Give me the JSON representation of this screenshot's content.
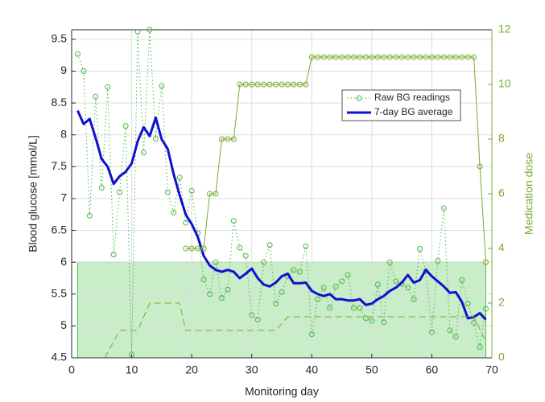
{
  "chart_data": {
    "type": "line",
    "xlabel": "Monitoring day",
    "ylabel": "Blood glucose [mmol/L]",
    "y2label": "Medication dose",
    "xlim": [
      0,
      70
    ],
    "xticks": [
      0,
      10,
      20,
      30,
      40,
      50,
      60,
      70
    ],
    "ylim": [
      4.5,
      9.65
    ],
    "yticks": [
      4.5,
      5,
      5.5,
      6,
      6.5,
      7,
      7.5,
      8,
      8.5,
      9,
      9.5
    ],
    "y2lim": [
      0,
      12
    ],
    "y2ticks": [
      0,
      2,
      4,
      6,
      8,
      10,
      12
    ],
    "y2color": "#77ac30",
    "grid": true,
    "band": {
      "x": [
        1,
        69
      ],
      "y": [
        4.5,
        6
      ],
      "color": "#c9ecc9",
      "edge": "#4cc04c"
    },
    "series": [
      {
        "name": "Raw BG readings",
        "color": "#4cb84c",
        "line_style": "dotted",
        "marker": "o",
        "width": 1,
        "x": [
          1,
          2,
          3,
          4,
          5,
          6,
          7,
          8,
          9,
          10,
          11,
          12,
          13,
          14,
          15,
          16,
          17,
          18,
          19,
          20,
          21,
          22,
          23,
          24,
          25,
          26,
          27,
          28,
          29,
          30,
          31,
          32,
          33,
          34,
          35,
          36,
          37,
          38,
          39,
          40,
          41,
          42,
          43,
          44,
          45,
          46,
          47,
          48,
          49,
          50,
          51,
          52,
          53,
          54,
          55,
          56,
          57,
          58,
          59,
          60,
          61,
          62,
          63,
          64,
          65,
          66,
          67,
          68,
          69
        ],
        "values": [
          9.27,
          9.0,
          6.73,
          8.6,
          7.17,
          8.75,
          6.12,
          7.1,
          8.14,
          4.55,
          9.62,
          7.72,
          9.65,
          7.94,
          8.77,
          7.1,
          6.78,
          7.33,
          6.62,
          7.12,
          6.46,
          5.73,
          5.5,
          6.0,
          5.44,
          5.57,
          6.65,
          6.23,
          6.1,
          5.17,
          5.1,
          6.0,
          6.27,
          5.35,
          5.53,
          5.78,
          5.88,
          5.85,
          6.25,
          4.87,
          5.42,
          5.6,
          5.28,
          5.62,
          5.7,
          5.8,
          5.28,
          5.28,
          5.12,
          5.08,
          5.65,
          5.06,
          6.0,
          5.7,
          5.66,
          5.6,
          5.42,
          6.21,
          5.86,
          4.9,
          6.02,
          6.85,
          4.93,
          4.83,
          5.72,
          5.35,
          5.05,
          4.67,
          5.27
        ]
      },
      {
        "name": "7-day BG average",
        "color": "#1010d0",
        "line_style": "solid",
        "marker": "none",
        "width": 3,
        "x": [
          1,
          2,
          3,
          4,
          5,
          6,
          7,
          8,
          9,
          10,
          11,
          12,
          13,
          14,
          15,
          16,
          17,
          18,
          19,
          20,
          21,
          22,
          23,
          24,
          25,
          26,
          27,
          28,
          29,
          30,
          31,
          32,
          33,
          34,
          35,
          36,
          37,
          38,
          39,
          40,
          41,
          42,
          43,
          44,
          45,
          46,
          47,
          48,
          49,
          50,
          51,
          52,
          53,
          54,
          55,
          56,
          57,
          58,
          59,
          60,
          61,
          62,
          63,
          64,
          65,
          66,
          67,
          68,
          69
        ],
        "values": [
          8.38,
          8.17,
          8.25,
          7.95,
          7.62,
          7.5,
          7.23,
          7.35,
          7.42,
          7.55,
          7.9,
          8.12,
          7.98,
          8.27,
          7.93,
          7.78,
          7.38,
          7.05,
          6.75,
          6.6,
          6.4,
          6.1,
          5.95,
          5.88,
          5.85,
          5.88,
          5.85,
          5.75,
          5.82,
          5.9,
          5.75,
          5.65,
          5.62,
          5.68,
          5.78,
          5.82,
          5.67,
          5.67,
          5.68,
          5.55,
          5.5,
          5.47,
          5.5,
          5.42,
          5.42,
          5.4,
          5.4,
          5.42,
          5.33,
          5.35,
          5.42,
          5.47,
          5.55,
          5.6,
          5.68,
          5.8,
          5.68,
          5.72,
          5.88,
          5.78,
          5.7,
          5.62,
          5.52,
          5.53,
          5.38,
          5.12,
          5.14,
          5.2,
          5.1
        ]
      },
      {
        "axis": "y2",
        "color": "#77ac30",
        "line_style": "solid",
        "marker": "o",
        "width": 1,
        "x": [
          19,
          20,
          21,
          22,
          23,
          24,
          25,
          26,
          27,
          28,
          29,
          30,
          31,
          32,
          33,
          34,
          35,
          36,
          37,
          38,
          39,
          40,
          41,
          42,
          43,
          44,
          45,
          46,
          47,
          48,
          49,
          50,
          51,
          52,
          53,
          54,
          55,
          56,
          57,
          58,
          59,
          60,
          61,
          62,
          63,
          64,
          65,
          66,
          67,
          68,
          69
        ],
        "values": [
          4,
          4,
          4,
          4,
          6,
          6,
          8,
          8,
          8,
          10,
          10,
          10,
          10,
          10,
          10,
          10,
          10,
          10,
          10,
          10,
          10,
          11,
          11,
          11,
          11,
          11,
          11,
          11,
          11,
          11,
          11,
          11,
          11,
          11,
          11,
          11,
          11,
          11,
          11,
          11,
          11,
          11,
          11,
          11,
          11,
          11,
          11,
          11,
          11,
          7,
          3.5
        ]
      },
      {
        "axis": "y2",
        "color": "#77ac30",
        "line_style": "dashed",
        "marker": "none",
        "width": 1,
        "x": [
          5.5,
          8,
          11,
          13,
          18,
          19,
          34,
          36,
          67,
          69
        ],
        "values": [
          0,
          1,
          1,
          2,
          2,
          1,
          1,
          1.5,
          1.5,
          0.6
        ]
      }
    ]
  }
}
